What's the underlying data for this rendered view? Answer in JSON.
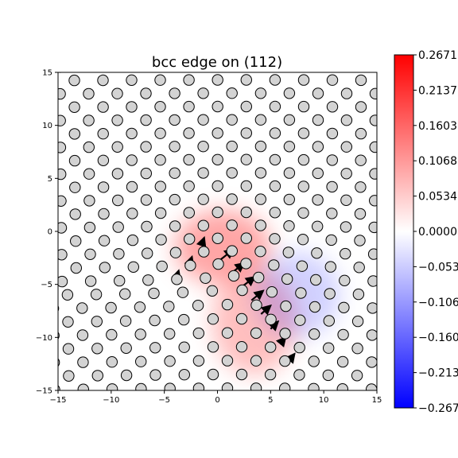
{
  "chart_data": {
    "type": "scatter",
    "title": "bcc edge on (112)",
    "xlim": [
      -15,
      15
    ],
    "ylim": [
      -15,
      15
    ],
    "xticks": [
      "−15",
      "−10",
      "−5",
      "0",
      "5",
      "10",
      "15"
    ],
    "yticks": [
      "15",
      "10",
      "5",
      "0",
      "−5",
      "−10",
      "−15"
    ],
    "grid": false,
    "lattice": {
      "a1": [
        2.7,
        0.0
      ],
      "a2": [
        1.35,
        1.27
      ],
      "origin": [
        -0.2,
        -2.9
      ],
      "atom_radius": 0.5,
      "atom_color": "#d3d3d3"
    },
    "dislocation_core": [
      1.6,
      -4.3
    ],
    "displacement_arrows": [
      {
        "x": 0.0,
        "y": -2.9,
        "dx": 1.5,
        "dy": 1.2
      },
      {
        "x": 1.1,
        "y": -4.1,
        "dx": 1.4,
        "dy": 1.1
      },
      {
        "x": 2.2,
        "y": -5.3,
        "dx": 1.3,
        "dy": 1.0
      },
      {
        "x": 3.2,
        "y": -6.5,
        "dx": 1.1,
        "dy": 0.9
      },
      {
        "x": 4.1,
        "y": -7.8,
        "dx": 0.9,
        "dy": 0.8
      },
      {
        "x": 5.0,
        "y": -9.2,
        "dx": 0.7,
        "dy": 0.7
      },
      {
        "x": 5.9,
        "y": -10.6,
        "dx": 0.5,
        "dy": 0.6
      },
      {
        "x": 6.9,
        "y": -12.0,
        "dx": 0.35,
        "dy": 0.45
      },
      {
        "x": -1.5,
        "y": -1.3,
        "dx": 0.25,
        "dy": 0.7
      },
      {
        "x": -2.6,
        "y": -3.0,
        "dx": 0.2,
        "dy": 0.6
      },
      {
        "x": -3.8,
        "y": -4.2,
        "dx": 0.15,
        "dy": 0.5
      }
    ],
    "colormap": {
      "name": "bwr",
      "colors": [
        "#0000ff",
        "#ffffff",
        "#ff0000"
      ],
      "min": -0.2671,
      "max": 0.2671,
      "tick_labels": [
        "0.2671",
        "0.2137",
        "0.1603",
        "0.1068",
        "0.0534",
        "0.0000",
        "−0.0534",
        "−0.1068",
        "−0.1603",
        "−0.2137",
        "−0.2671"
      ]
    },
    "field_lobes": [
      {
        "x": 0.5,
        "y": -1.5,
        "rx": 4.5,
        "ry": 3.5,
        "sign": "positive",
        "intensity": 0.35
      },
      {
        "x": 3.5,
        "y": -8.5,
        "rx": 4.0,
        "ry": 5.0,
        "sign": "positive",
        "intensity": 0.25
      },
      {
        "x": 7.5,
        "y": -6.0,
        "rx": 4.0,
        "ry": 4.0,
        "sign": "negative",
        "intensity": 0.18
      }
    ]
  }
}
